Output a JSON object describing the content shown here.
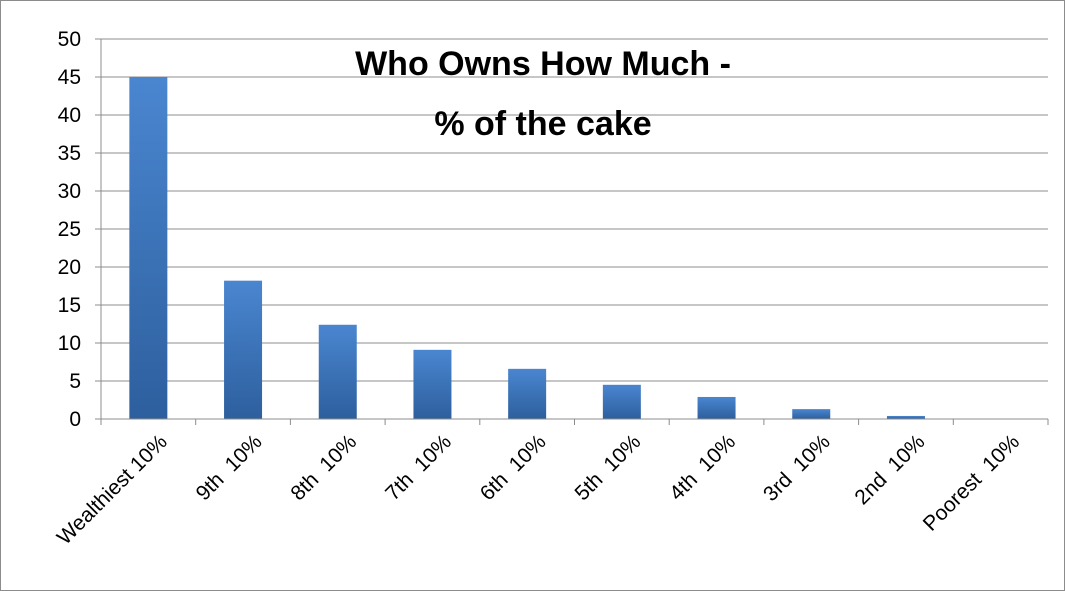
{
  "chart_data": {
    "type": "bar",
    "title_lines": [
      "Who Owns How Much -",
      "% of the cake"
    ],
    "xlabel": "",
    "ylabel": "",
    "categories": [
      "Wealthiest 10%",
      "9th  10%",
      "8th  10%",
      "7th  10%",
      "6th  10%",
      "5th  10%",
      "4th  10%",
      "3rd  10%",
      "2nd  10%",
      "Poorest  10%"
    ],
    "values": [
      45,
      18.2,
      12.4,
      9.1,
      6.6,
      4.5,
      2.9,
      1.3,
      0.4,
      0
    ],
    "ylim": [
      0,
      50
    ],
    "yticks": [
      0,
      5,
      10,
      15,
      20,
      25,
      30,
      35,
      40,
      45,
      50
    ],
    "grid": true,
    "legend": "none",
    "colors": {
      "bar_top": "#4a86d0",
      "bar_bottom": "#2d5f9e",
      "gridline": "#8c8c8c",
      "axis": "#8c8c8c",
      "frame": "#8c8c8c"
    }
  }
}
